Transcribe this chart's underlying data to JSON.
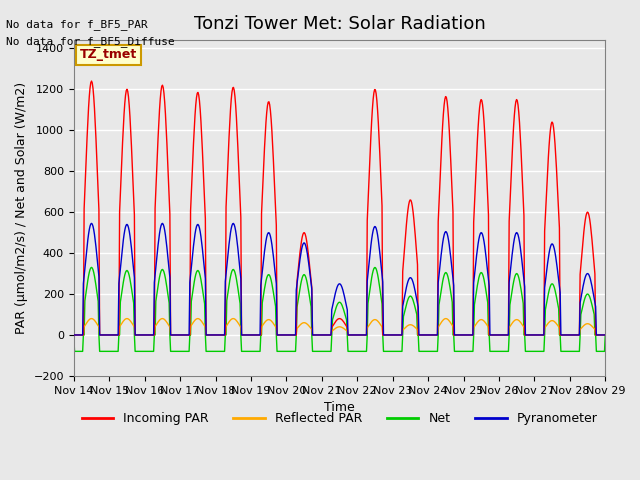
{
  "title": "Tonzi Tower Met: Solar Radiation",
  "ylabel": "PAR (μmol/m2/s) / Net and Solar (W/m2)",
  "xlabel": "Time",
  "ylim": [
    -200,
    1440
  ],
  "background_color": "#e8e8e8",
  "plot_bg_color": "#e8e8e8",
  "grid_color": "white",
  "text_no_data_1": "No data for f_BF5_PAR",
  "text_no_data_2": "No data for f_BF5_Diffuse",
  "legend_box_label": "TZ_tmet",
  "legend_box_color": "#ffffcc",
  "legend_box_edge": "#cc9900",
  "series_colors": {
    "incoming": "#ff0000",
    "reflected": "#ffaa00",
    "net": "#00cc00",
    "pyranometer": "#0000cc"
  },
  "legend_labels": [
    "Incoming PAR",
    "Reflected PAR",
    "Net",
    "Pyranometer"
  ],
  "yticks": [
    -200,
    0,
    200,
    400,
    600,
    800,
    1000,
    1200,
    1400
  ],
  "xtick_labels": [
    "Nov 14",
    "Nov 15",
    "Nov 16",
    "Nov 17",
    "Nov 18",
    "Nov 19",
    "Nov 20",
    "Nov 21",
    "Nov 22",
    "Nov 23",
    "Nov 24",
    "Nov 25",
    "Nov 26",
    "Nov 27",
    "Nov 28",
    "Nov 29"
  ],
  "num_days": 15,
  "points_per_day": 48,
  "day_peaks_incoming": [
    1240,
    1200,
    1220,
    1185,
    1210,
    1140,
    500,
    80,
    1200,
    660,
    1165,
    1150,
    1150,
    1040,
    600
  ],
  "day_peaks_pyranometer": [
    545,
    540,
    545,
    540,
    545,
    500,
    450,
    250,
    530,
    280,
    505,
    500,
    500,
    445,
    300
  ],
  "day_peaks_net": [
    330,
    315,
    320,
    315,
    320,
    295,
    295,
    160,
    330,
    190,
    305,
    305,
    300,
    250,
    200
  ],
  "day_peaks_reflected": [
    80,
    80,
    80,
    80,
    80,
    75,
    60,
    40,
    75,
    50,
    80,
    75,
    75,
    70,
    55
  ],
  "net_negative": -80
}
